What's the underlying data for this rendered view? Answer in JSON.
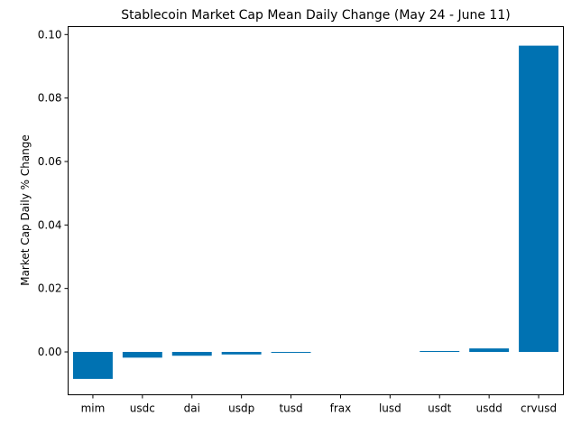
{
  "chart_data": {
    "type": "bar",
    "title": "Stablecoin Market Cap Mean Daily Change (May 24 - June 11)",
    "xlabel": "",
    "ylabel": "Market Cap Daily % Change",
    "categories": [
      "mim",
      "usdc",
      "dai",
      "usdp",
      "tusd",
      "frax",
      "lusd",
      "usdt",
      "usdd",
      "crvusd"
    ],
    "values": [
      -0.0085,
      -0.0018,
      -0.0012,
      -0.0008,
      -0.0002,
      0.0,
      0.0,
      0.0003,
      0.0011,
      0.0965
    ],
    "ylim": [
      -0.0135,
      0.1025
    ],
    "yticks": [
      0.0,
      0.02,
      0.04,
      0.06,
      0.08,
      0.1
    ],
    "ytick_labels": [
      "0.00",
      "0.02",
      "0.04",
      "0.06",
      "0.08",
      "0.10"
    ],
    "bar_color": "#0072b2",
    "grid": false,
    "legend": "none"
  }
}
